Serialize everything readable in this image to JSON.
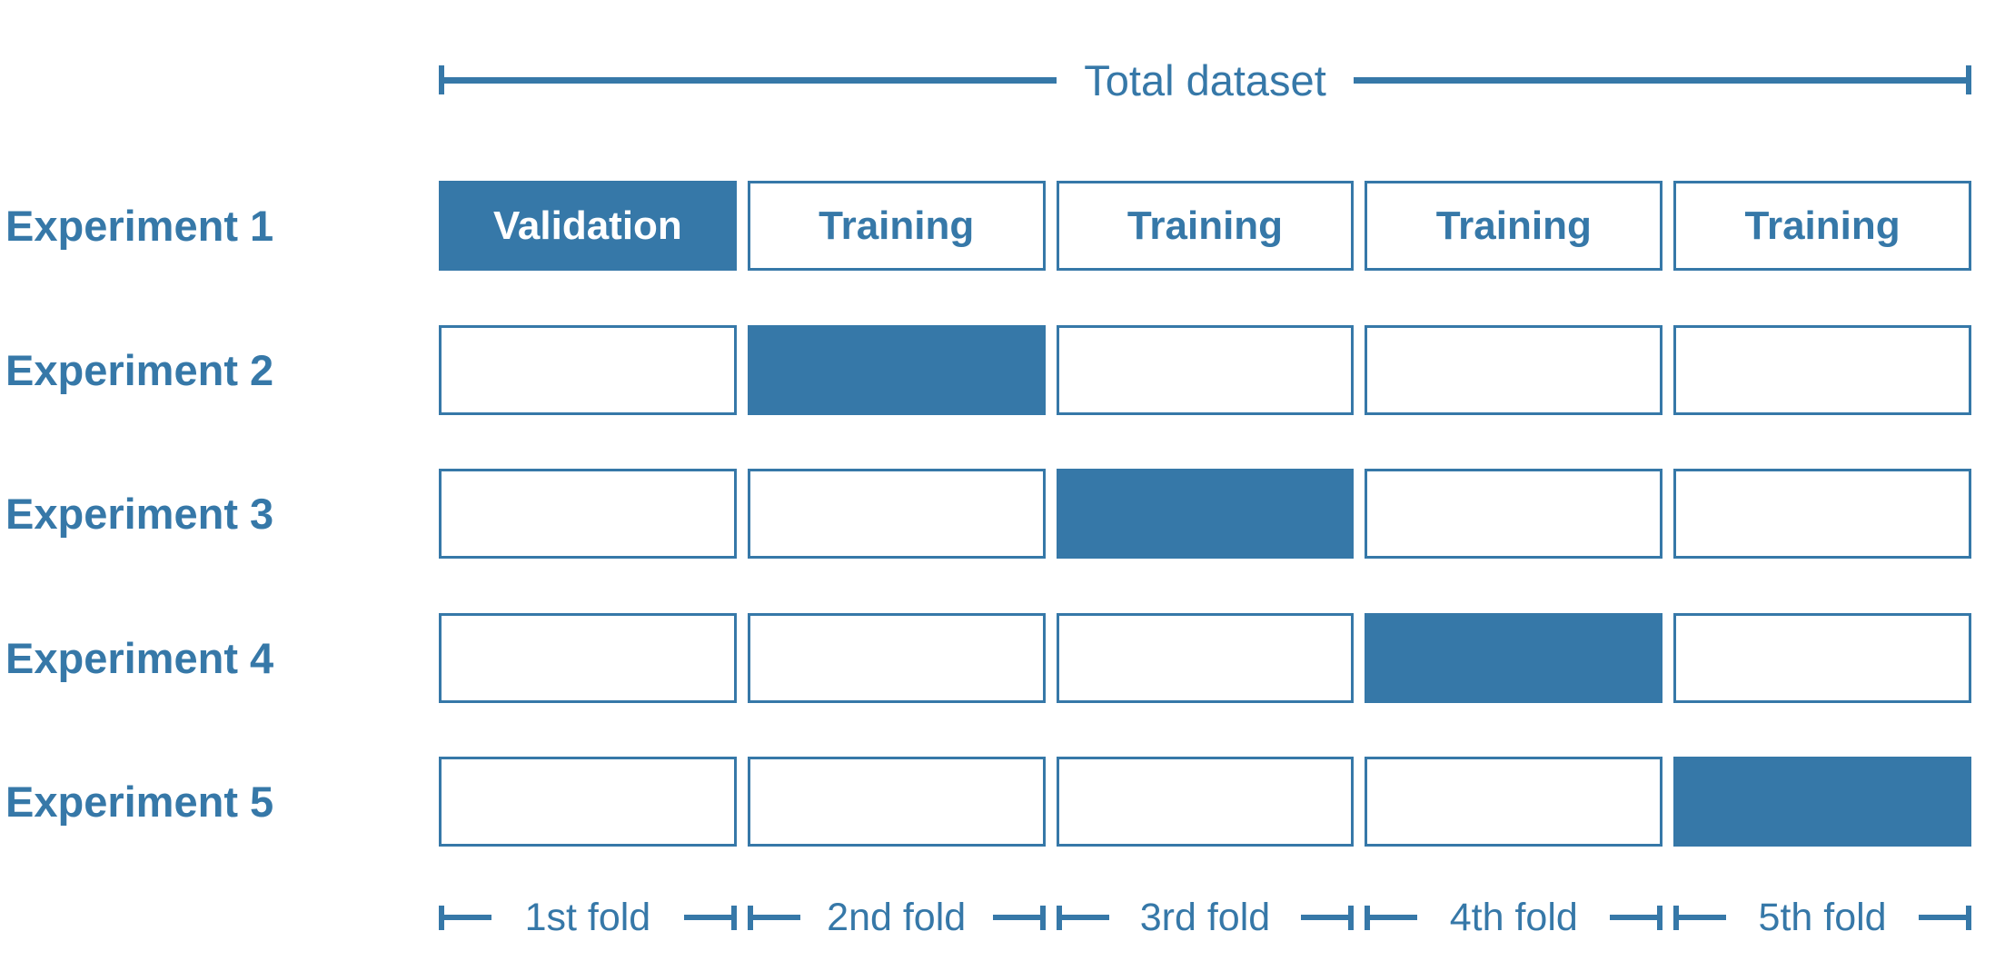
{
  "diagram": {
    "title_semantic": "k-fold cross-validation",
    "accent_color": "#3678a8",
    "total_dataset_label": "Total dataset",
    "experiments": [
      {
        "label": "Experiment 1",
        "cells": [
          {
            "text": "Validation",
            "state": "filled"
          },
          {
            "text": "Training",
            "state": "empty"
          },
          {
            "text": "Training",
            "state": "empty"
          },
          {
            "text": "Training",
            "state": "empty"
          },
          {
            "text": "Training",
            "state": "empty"
          }
        ]
      },
      {
        "label": "Experiment 2",
        "cells": [
          {
            "text": "",
            "state": "empty"
          },
          {
            "text": "",
            "state": "filled"
          },
          {
            "text": "",
            "state": "empty"
          },
          {
            "text": "",
            "state": "empty"
          },
          {
            "text": "",
            "state": "empty"
          }
        ]
      },
      {
        "label": "Experiment 3",
        "cells": [
          {
            "text": "",
            "state": "empty"
          },
          {
            "text": "",
            "state": "empty"
          },
          {
            "text": "",
            "state": "filled"
          },
          {
            "text": "",
            "state": "empty"
          },
          {
            "text": "",
            "state": "empty"
          }
        ]
      },
      {
        "label": "Experiment 4",
        "cells": [
          {
            "text": "",
            "state": "empty"
          },
          {
            "text": "",
            "state": "empty"
          },
          {
            "text": "",
            "state": "empty"
          },
          {
            "text": "",
            "state": "filled"
          },
          {
            "text": "",
            "state": "empty"
          }
        ]
      },
      {
        "label": "Experiment 5",
        "cells": [
          {
            "text": "",
            "state": "empty"
          },
          {
            "text": "",
            "state": "empty"
          },
          {
            "text": "",
            "state": "empty"
          },
          {
            "text": "",
            "state": "empty"
          },
          {
            "text": "",
            "state": "filled"
          }
        ]
      }
    ],
    "folds": [
      "1st fold",
      "2nd fold",
      "3rd fold",
      "4th fold",
      "5th fold"
    ]
  }
}
